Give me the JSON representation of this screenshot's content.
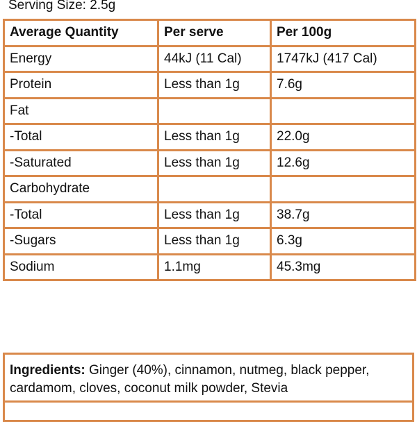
{
  "serving_size": "Serving Size: 2.5g",
  "table": {
    "headers": [
      "Average Quantity",
      "Per serve",
      "Per 100g"
    ],
    "rows": [
      [
        "Energy",
        "44kJ (11 Cal)",
        "1747kJ (417 Cal)"
      ],
      [
        "Protein",
        "Less than 1g",
        "7.6g"
      ],
      [
        "Fat",
        "",
        ""
      ],
      [
        "-Total",
        "Less than 1g",
        "22.0g"
      ],
      [
        "-Saturated",
        "Less than 1g",
        "12.6g"
      ],
      [
        "Carbohydrate",
        "",
        ""
      ],
      [
        "-Total",
        "Less than 1g",
        "38.7g"
      ],
      [
        "-Sugars",
        "Less than 1g",
        "6.3g"
      ],
      [
        "Sodium",
        "1.1mg",
        "45.3mg"
      ]
    ]
  },
  "ingredients": {
    "label": "Ingredients:",
    "text": " Ginger (40%), cinnamon, nutmeg, black pepper, cardamom, cloves, coconut milk powder, Stevia"
  },
  "colors": {
    "border": "#d9894b"
  }
}
